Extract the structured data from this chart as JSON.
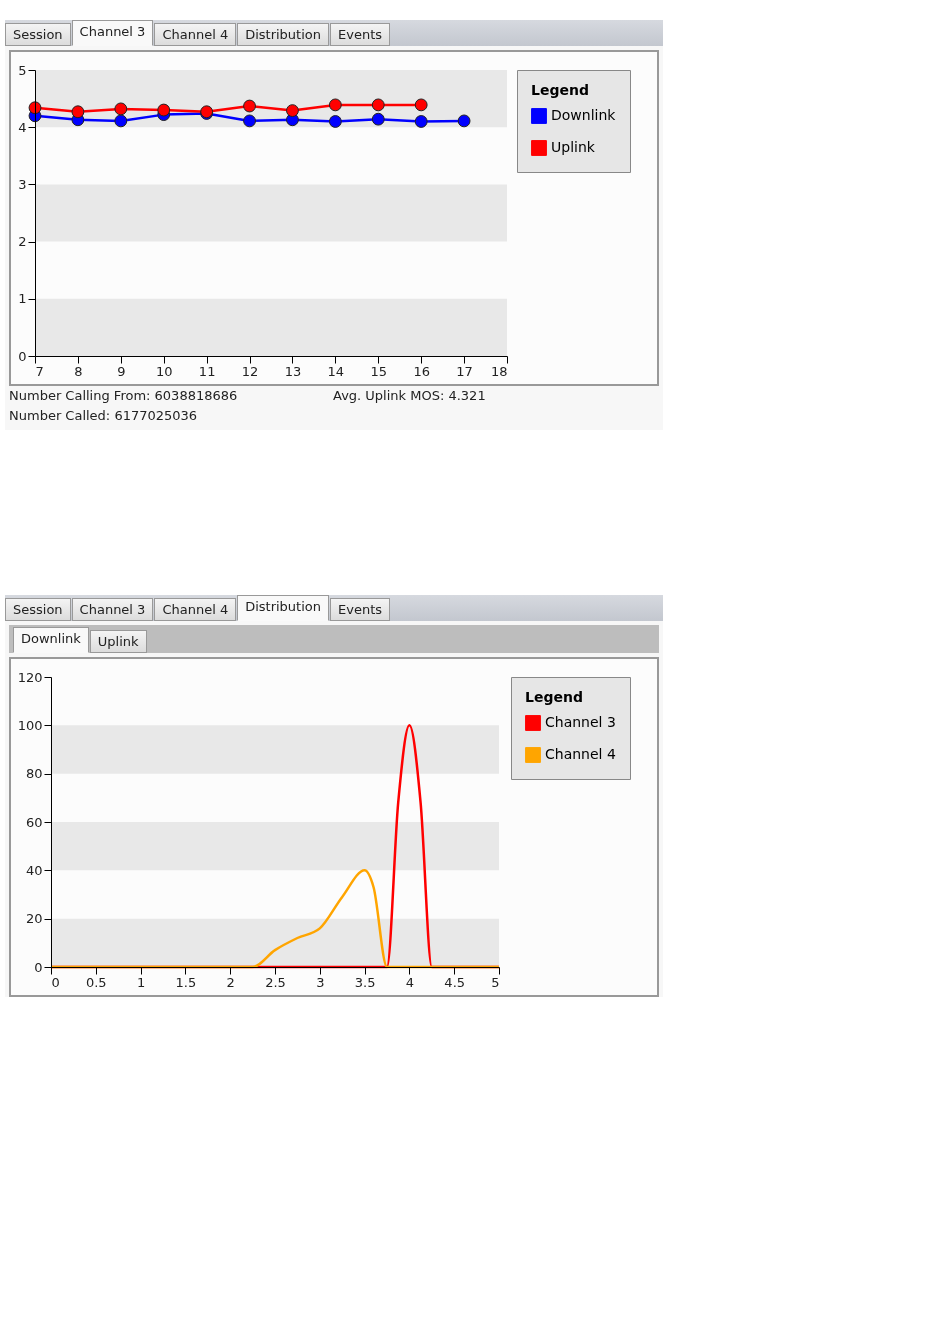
{
  "chart_data": [
    {
      "type": "line",
      "x": [
        7,
        8,
        9,
        10,
        11,
        12,
        13,
        14,
        15,
        16,
        17
      ],
      "xlim": [
        7,
        18
      ],
      "xticks": [
        7,
        8,
        9,
        10,
        11,
        12,
        13,
        14,
        15,
        16,
        17,
        18
      ],
      "ylim": [
        0,
        5
      ],
      "yticks": [
        0,
        1,
        2,
        3,
        4,
        5
      ],
      "bands": [
        {
          "axis": "y",
          "from": 0,
          "to": 1,
          "color": "#e8e8e8"
        },
        {
          "axis": "y",
          "from": 2,
          "to": 3,
          "color": "#e8e8e8"
        },
        {
          "axis": "y",
          "from": 4,
          "to": 5,
          "color": "#e8e8e8"
        }
      ],
      "legend": "right",
      "legend_title": "Legend",
      "marker": "circle",
      "line_style": "solid",
      "series": [
        {
          "name": "Downlink",
          "color": "#0000ff",
          "values": [
            4.2,
            4.13,
            4.11,
            4.22,
            4.24,
            4.11,
            4.13,
            4.1,
            4.14,
            4.1,
            4.11
          ]
        },
        {
          "name": "Uplink",
          "color": "#ff0000",
          "x": [
            7,
            8,
            9,
            10,
            11,
            12,
            13,
            14,
            15,
            16
          ],
          "values": [
            4.34,
            4.27,
            4.32,
            4.3,
            4.27,
            4.37,
            4.29,
            4.39,
            4.39,
            4.39
          ]
        }
      ],
      "annotations": [
        "Session",
        "Channel 3",
        "Channel 4",
        "Distribution",
        "Events",
        "Number Calling From: 6038818686",
        "Avg. Uplink MOS: 4.321",
        "Number Called: 6177025036"
      ]
    },
    {
      "type": "line",
      "xlim": [
        0,
        5
      ],
      "xticks": [
        0,
        0.5,
        1,
        1.5,
        2,
        2.5,
        3,
        3.5,
        4,
        4.5,
        5
      ],
      "ylim": [
        0,
        120
      ],
      "yticks": [
        0,
        20,
        40,
        60,
        80,
        100,
        120
      ],
      "bands": [
        {
          "axis": "y",
          "from": 0,
          "to": 20,
          "color": "#e8e8e8"
        },
        {
          "axis": "y",
          "from": 40,
          "to": 60,
          "color": "#e8e8e8"
        },
        {
          "axis": "y",
          "from": 80,
          "to": 100,
          "color": "#e8e8e8"
        }
      ],
      "legend": "right",
      "legend_title": "Legend",
      "line_style": "solid",
      "series": [
        {
          "name": "Channel 3",
          "color": "#ff0000",
          "x": [
            0,
            3.75,
            3.875,
            4,
            4.125,
            4.25,
            5
          ],
          "values": [
            0,
            0,
            68,
            100,
            68,
            0,
            0
          ]
        },
        {
          "name": "Channel 4",
          "color": "#ffa500",
          "x": [
            0,
            2.25,
            2.5,
            2.75,
            3,
            3.25,
            3.5,
            3.6,
            3.75,
            4,
            5
          ],
          "values": [
            0,
            0,
            7,
            12,
            16,
            29,
            40,
            33,
            0,
            0,
            0
          ]
        }
      ],
      "annotations": [
        "Session",
        "Channel 3",
        "Channel 4",
        "Distribution",
        "Events",
        "Downlink",
        "Uplink"
      ]
    }
  ]
}
